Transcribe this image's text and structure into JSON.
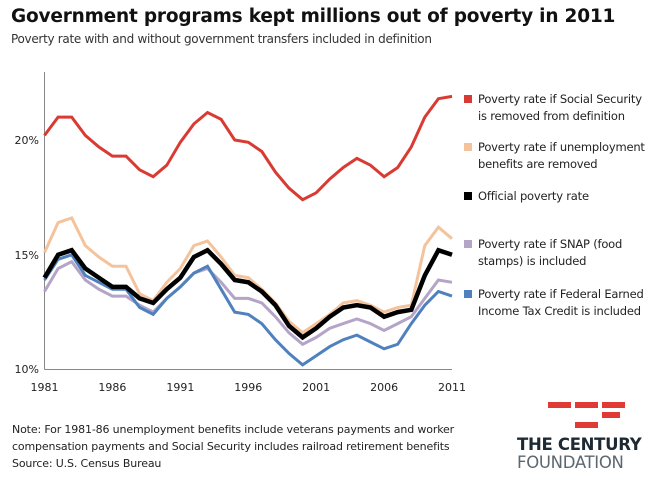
{
  "header": {
    "title": "Government programs kept millions out of poverty in 2011",
    "subtitle": "Poverty rate with and without government transfers included in definition"
  },
  "chart_data": {
    "type": "line",
    "title": "Government programs kept millions out of poverty in 2011",
    "subtitle": "Poverty rate with and without government transfers included in definition",
    "xlabel": "",
    "ylabel": "",
    "x": [
      1981,
      1982,
      1983,
      1984,
      1985,
      1986,
      1987,
      1988,
      1989,
      1990,
      1991,
      1992,
      1993,
      1994,
      1995,
      1996,
      1997,
      1998,
      1999,
      2000,
      2001,
      2002,
      2003,
      2004,
      2005,
      2006,
      2007,
      2008,
      2009,
      2010,
      2011
    ],
    "x_ticks": [
      "1981",
      "1986",
      "1991",
      "1996",
      "2001",
      "2006",
      "2011"
    ],
    "y_ticks": [
      "10%",
      "15%",
      "20%"
    ],
    "ylim": [
      10,
      23.1
    ],
    "xlim": [
      1981,
      2011
    ],
    "grid": false,
    "legend_position": "right",
    "series": [
      {
        "name": "Poverty rate if Social Security is removed from definition",
        "color": "#d93a32",
        "values": [
          20.2,
          21.0,
          21.0,
          20.2,
          19.7,
          19.3,
          19.3,
          18.7,
          18.4,
          18.9,
          19.9,
          20.7,
          21.2,
          20.9,
          20.0,
          19.9,
          19.5,
          18.6,
          17.9,
          17.4,
          17.7,
          18.3,
          18.8,
          19.2,
          18.9,
          18.4,
          18.8,
          19.7,
          21.0,
          21.8,
          21.9
        ]
      },
      {
        "name": "Poverty rate if unemployment benefits are removed",
        "color": "#f5c39b",
        "values": [
          15.1,
          16.4,
          16.6,
          15.4,
          14.9,
          14.5,
          14.5,
          13.3,
          13.0,
          13.8,
          14.4,
          15.4,
          15.6,
          14.9,
          14.1,
          14.0,
          13.5,
          12.9,
          12.1,
          11.6,
          12.0,
          12.4,
          12.9,
          13.0,
          12.8,
          12.5,
          12.7,
          12.8,
          15.4,
          16.2,
          15.7
        ]
      },
      {
        "name": "Official poverty rate",
        "color": "#000000",
        "values": [
          14.0,
          15.0,
          15.2,
          14.4,
          14.0,
          13.6,
          13.6,
          13.1,
          12.9,
          13.5,
          14.0,
          14.9,
          15.2,
          14.6,
          13.9,
          13.8,
          13.4,
          12.8,
          11.9,
          11.4,
          11.8,
          12.3,
          12.7,
          12.8,
          12.7,
          12.3,
          12.5,
          12.6,
          14.1,
          15.2,
          15.0
        ]
      },
      {
        "name": "Poverty rate if SNAP (food stamps) is included",
        "color": "#b4a4c8",
        "values": [
          13.4,
          14.4,
          14.7,
          13.9,
          13.5,
          13.2,
          13.2,
          12.8,
          12.5,
          13.1,
          13.6,
          14.2,
          14.4,
          13.8,
          13.1,
          13.1,
          12.9,
          12.3,
          11.6,
          11.1,
          11.4,
          11.8,
          12.0,
          12.2,
          12.0,
          11.7,
          12.0,
          12.3,
          13.1,
          13.9,
          13.8
        ]
      },
      {
        "name": "Poverty rate if Federal Earned Income Tax Credit is included",
        "color": "#4e81bd",
        "values": [
          13.9,
          14.8,
          15.0,
          14.1,
          13.8,
          13.5,
          13.5,
          12.7,
          12.4,
          13.1,
          13.6,
          14.2,
          14.5,
          13.5,
          12.5,
          12.4,
          12.0,
          11.3,
          10.7,
          10.2,
          10.6,
          11.0,
          11.3,
          11.5,
          11.2,
          10.9,
          11.1,
          12.0,
          12.8,
          13.4,
          13.2
        ]
      }
    ]
  },
  "legend": {
    "items": [
      {
        "line1": "Poverty rate if Social Security",
        "line2": "is removed from definition",
        "color": "#d93a32"
      },
      {
        "line1": "Poverty rate if unemployment",
        "line2": "benefits are removed",
        "color": "#f5c39b"
      },
      {
        "line1": "Official poverty rate",
        "line2": "",
        "color": "#000000"
      },
      {
        "line1": "Poverty rate if SNAP (food",
        "line2": "stamps) is included",
        "color": "#b4a4c8"
      },
      {
        "line1": "Poverty rate if Federal Earned",
        "line2": "Income Tax Credit is included",
        "color": "#4e81bd"
      }
    ]
  },
  "footer": {
    "note_line1": "Note: For 1981-86 unemployment benefits include veterans payments and worker",
    "note_line2": "compensation payments and  Social Security includes railroad retirement benefits",
    "source": "Source: U.S. Census Bureau"
  },
  "logo": {
    "line1": "THE CENTURY",
    "line2": "FOUNDATION",
    "accent_color": "#e03a36"
  }
}
